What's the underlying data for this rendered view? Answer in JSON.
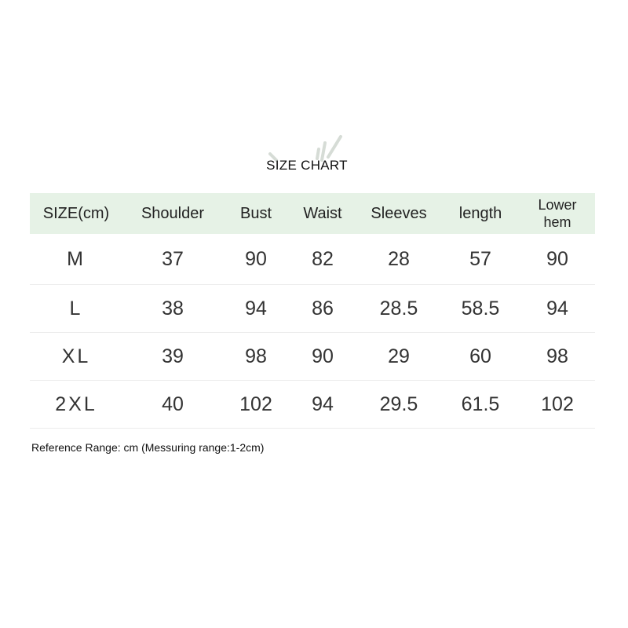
{
  "title": "SIZE CHART",
  "headers": [
    "SIZE(cm)",
    "Shoulder",
    "Bust",
    "Waist",
    "Sleeves",
    "length",
    "Lower hem"
  ],
  "rows": [
    [
      "M",
      "37",
      "90",
      "82",
      "28",
      "57",
      "90"
    ],
    [
      "L",
      "38",
      "94",
      "86",
      "28.5",
      "58.5",
      "94"
    ],
    [
      "XL",
      "39",
      "98",
      "90",
      "29",
      "60",
      "98"
    ],
    [
      "2XL",
      "40",
      "102",
      "94",
      "29.5",
      "61.5",
      "102"
    ]
  ],
  "note": "Reference Range: cm (Messuring range:1-2cm)",
  "colors": {
    "header_bg": "#e6f2e6",
    "decoration": "#d0d8d0"
  }
}
